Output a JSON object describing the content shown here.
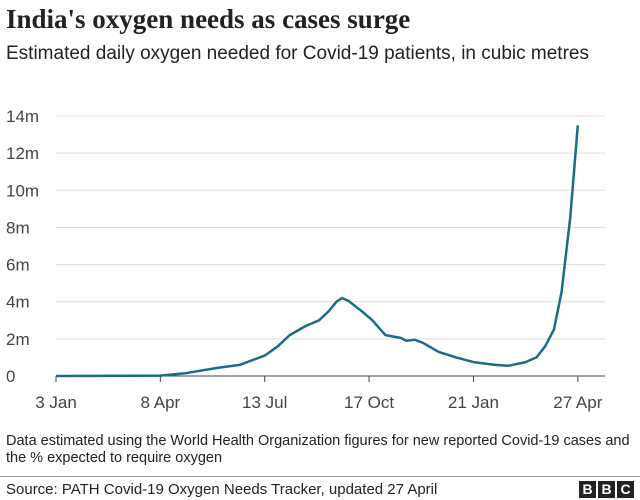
{
  "title": "India's oxygen needs as cases surge",
  "subtitle": "Estimated daily oxygen needed for Covid-19 patients, in cubic metres",
  "note": "Data estimated using the World Health Organization figures for new reported Covid-19 cases and the % expected to require oxygen",
  "source": "Source: PATH Covid-19 Oxygen Needs Tracker, updated 27 April",
  "logo": "BBC",
  "chart_data": {
    "type": "line",
    "title": "India's oxygen needs as cases surge",
    "xlabel": "",
    "ylabel": "",
    "ylim": [
      0,
      14
    ],
    "xlim": [
      "2020-01-03",
      "2021-05-22"
    ],
    "grid": true,
    "line_color": "#1b6b8a",
    "yticks": [
      {
        "v": 0,
        "label": "0"
      },
      {
        "v": 2,
        "label": "2m"
      },
      {
        "v": 4,
        "label": "4m"
      },
      {
        "v": 6,
        "label": "6m"
      },
      {
        "v": 8,
        "label": "8m"
      },
      {
        "v": 10,
        "label": "10m"
      },
      {
        "v": 12,
        "label": "12m"
      },
      {
        "v": 14,
        "label": "14m"
      }
    ],
    "xticks": [
      {
        "d": "2020-01-03",
        "label": "3 Jan"
      },
      {
        "d": "2020-04-08",
        "label": "8 Apr"
      },
      {
        "d": "2020-07-13",
        "label": "13 Jul"
      },
      {
        "d": "2020-10-17",
        "label": "17 Oct"
      },
      {
        "d": "2021-01-21",
        "label": "21 Jan"
      },
      {
        "d": "2021-04-27",
        "label": "27 Apr"
      }
    ],
    "series": [
      {
        "values": [
          [
            "2020-01-03",
            0
          ],
          [
            "2020-04-08",
            0.02
          ],
          [
            "2020-05-01",
            0.15
          ],
          [
            "2020-06-01",
            0.45
          ],
          [
            "2020-06-20",
            0.6
          ],
          [
            "2020-07-13",
            1.1
          ],
          [
            "2020-07-25",
            1.6
          ],
          [
            "2020-08-05",
            2.2
          ],
          [
            "2020-08-20",
            2.7
          ],
          [
            "2020-09-01",
            3.0
          ],
          [
            "2020-09-10",
            3.5
          ],
          [
            "2020-09-17",
            4.0
          ],
          [
            "2020-09-22",
            4.2
          ],
          [
            "2020-09-28",
            4.05
          ],
          [
            "2020-10-10",
            3.5
          ],
          [
            "2020-10-20",
            3.0
          ],
          [
            "2020-11-01",
            2.2
          ],
          [
            "2020-11-15",
            2.05
          ],
          [
            "2020-11-20",
            1.9
          ],
          [
            "2020-11-28",
            1.95
          ],
          [
            "2020-12-05",
            1.8
          ],
          [
            "2020-12-20",
            1.3
          ],
          [
            "2021-01-05",
            1.0
          ],
          [
            "2021-01-21",
            0.75
          ],
          [
            "2021-02-10",
            0.6
          ],
          [
            "2021-02-22",
            0.55
          ],
          [
            "2021-03-10",
            0.75
          ],
          [
            "2021-03-20",
            1.0
          ],
          [
            "2021-03-28",
            1.6
          ],
          [
            "2021-04-05",
            2.5
          ],
          [
            "2021-04-12",
            4.5
          ],
          [
            "2021-04-20",
            8.5
          ],
          [
            "2021-04-27",
            13.5
          ]
        ]
      }
    ]
  }
}
